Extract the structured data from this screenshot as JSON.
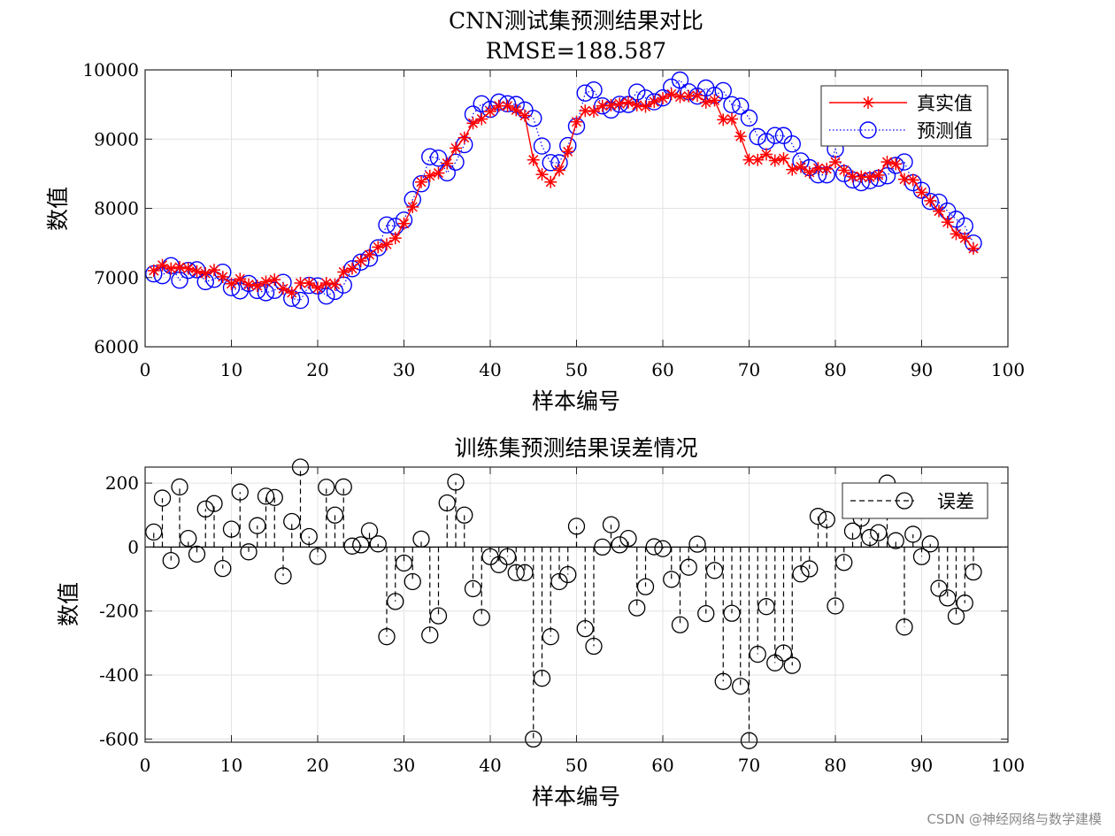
{
  "watermark": "CSDN @神经网络与数学建模",
  "chart_data": [
    {
      "type": "line",
      "title": "CNN测试集预测结果对比",
      "subtitle": "RMSE=188.587",
      "xlabel": "样本编号",
      "ylabel": "数值",
      "xlim": [
        0,
        100
      ],
      "ylim": [
        6000,
        10000
      ],
      "xticks": [
        "0",
        "10",
        "20",
        "30",
        "40",
        "50",
        "60",
        "70",
        "80",
        "90",
        "100"
      ],
      "yticks": [
        "6000",
        "7000",
        "8000",
        "9000",
        "10000"
      ],
      "grid": true,
      "legend_position": "top-right",
      "x": [
        1,
        2,
        3,
        4,
        5,
        6,
        7,
        8,
        9,
        10,
        11,
        12,
        13,
        14,
        15,
        16,
        17,
        18,
        19,
        20,
        21,
        22,
        23,
        24,
        25,
        26,
        27,
        28,
        29,
        30,
        31,
        32,
        33,
        34,
        35,
        36,
        37,
        38,
        39,
        40,
        41,
        42,
        43,
        44,
        45,
        46,
        47,
        48,
        49,
        50,
        51,
        52,
        53,
        54,
        55,
        56,
        57,
        58,
        59,
        60,
        61,
        62,
        63,
        64,
        65,
        66,
        67,
        68,
        69,
        70,
        71,
        72,
        73,
        74,
        75,
        76,
        77,
        78,
        79,
        80,
        81,
        82,
        83,
        84,
        85,
        86,
        87,
        88,
        89,
        90,
        91,
        92,
        93,
        94,
        95,
        96
      ],
      "series": [
        {
          "name": "真实值",
          "color": "#ff0000",
          "line": "solid",
          "marker": "asterisk",
          "values": [
            7100,
            7180,
            7130,
            7150,
            7130,
            7090,
            7060,
            7110,
            7010,
            6910,
            6980,
            6900,
            6880,
            6940,
            6970,
            6840,
            6780,
            6920,
            6920,
            6850,
            6920,
            6900,
            7080,
            7130,
            7240,
            7330,
            7440,
            7480,
            7570,
            7780,
            8020,
            8380,
            8470,
            8510,
            8650,
            8870,
            9020,
            9230,
            9290,
            9400,
            9480,
            9480,
            9420,
            9340,
            8700,
            8490,
            8380,
            8550,
            8820,
            9250,
            9410,
            9400,
            9480,
            9490,
            9510,
            9530,
            9490,
            9470,
            9540,
            9590,
            9650,
            9610,
            9620,
            9630,
            9530,
            9560,
            9280,
            9290,
            9040,
            8700,
            8700,
            8780,
            8690,
            8720,
            8560,
            8600,
            8520,
            8580,
            8570,
            8670,
            8550,
            8460,
            8460,
            8450,
            8480,
            8670,
            8640,
            8420,
            8410,
            8230,
            8110,
            7960,
            7800,
            7630,
            7570,
            7420
          ]
        },
        {
          "name": "预测值",
          "color": "#0000ff",
          "line": "dotted",
          "marker": "circle",
          "values": [
            7053,
            7027,
            7172,
            6962,
            7103,
            7112,
            6941,
            6974,
            7077,
            6854,
            6808,
            6915,
            6813,
            6781,
            6815,
            6930,
            6700,
            6670,
            6887,
            6879,
            6733,
            6800,
            6892,
            7127,
            7223,
            7279,
            7430,
            7760,
            7740,
            7830,
            8128,
            8355,
            8745,
            8725,
            8512,
            8667,
            8920,
            9360,
            9510,
            9430,
            9535,
            9510,
            9500,
            9420,
            9300,
            8900,
            8660,
            8658,
            8906,
            9185,
            9665,
            9710,
            9480,
            9420,
            9503,
            9500,
            9680,
            9594,
            9539,
            9595,
            9751,
            9853,
            9683,
            9621,
            9738,
            9633,
            9700,
            9497,
            9475,
            9305,
            9035,
            8966,
            9052,
            9051,
            8930,
            8684,
            8588,
            8484,
            8484,
            8854,
            8502,
            8410,
            8370,
            8400,
            8435,
            8470,
            8620,
            8670,
            8370,
            8260,
            8100,
            8089,
            7961,
            7842,
            7745,
            7498
          ]
        }
      ]
    },
    {
      "type": "stem",
      "title": "训练集预测结果误差情况",
      "xlabel": "样本编号",
      "ylabel": "数值",
      "xlim": [
        0,
        100
      ],
      "ylim": [
        -610,
        250
      ],
      "xticks": [
        "0",
        "10",
        "20",
        "30",
        "40",
        "50",
        "60",
        "70",
        "80",
        "90",
        "100"
      ],
      "yticks": [
        "-600",
        "-400",
        "-200",
        "0",
        "200"
      ],
      "grid": true,
      "legend_position": "top-right",
      "x": [
        1,
        2,
        3,
        4,
        5,
        6,
        7,
        8,
        9,
        10,
        11,
        12,
        13,
        14,
        15,
        16,
        17,
        18,
        19,
        20,
        21,
        22,
        23,
        24,
        25,
        26,
        27,
        28,
        29,
        30,
        31,
        32,
        33,
        34,
        35,
        36,
        37,
        38,
        39,
        40,
        41,
        42,
        43,
        44,
        45,
        46,
        47,
        48,
        49,
        50,
        51,
        52,
        53,
        54,
        55,
        56,
        57,
        58,
        59,
        60,
        61,
        62,
        63,
        64,
        65,
        66,
        67,
        68,
        69,
        70,
        71,
        72,
        73,
        74,
        75,
        76,
        77,
        78,
        79,
        80,
        81,
        82,
        83,
        84,
        85,
        86,
        87,
        88,
        89,
        90,
        91,
        92,
        93,
        94,
        95,
        96
      ],
      "series": [
        {
          "name": "误差",
          "color": "#000000",
          "line": "dashed",
          "marker": "circle",
          "values": [
            47,
            153,
            -42,
            188,
            27,
            -22,
            119,
            136,
            -67,
            56,
            172,
            -15,
            67,
            159,
            155,
            -90,
            80,
            250,
            33,
            -29,
            187,
            100,
            188,
            3,
            7,
            51,
            10,
            -280,
            -170,
            -50,
            -108,
            25,
            -275,
            -215,
            138,
            203,
            100,
            -130,
            -220,
            -30,
            -55,
            -30,
            -80,
            -80,
            -600,
            -410,
            -280,
            -108,
            -86,
            65,
            -255,
            -310,
            0,
            70,
            7,
            27,
            -190,
            -124,
            1,
            -5,
            -101,
            -243,
            -63,
            9,
            -208,
            -73,
            -420,
            -207,
            -435,
            -605,
            -335,
            -186,
            -362,
            -331,
            -370,
            -84,
            -68,
            96,
            86,
            -184,
            -48,
            50,
            90,
            30,
            45,
            200,
            20,
            -250,
            40,
            -30,
            10,
            -129,
            -159,
            -216,
            -175,
            -78
          ]
        }
      ]
    }
  ]
}
